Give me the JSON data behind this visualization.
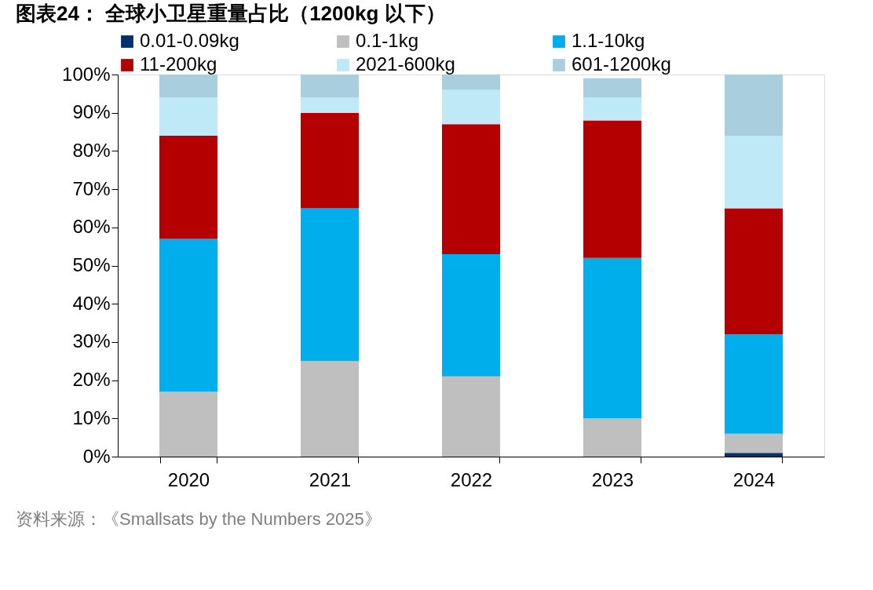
{
  "chart_data": {
    "type": "bar",
    "stacked": true,
    "title": "图表24： 全球小卫星重量占比（1200kg 以下）",
    "categories": [
      "2020",
      "2021",
      "2022",
      "2023",
      "2024"
    ],
    "series": [
      {
        "name": "0.01-0.09kg",
        "color": "#003070",
        "values": [
          0,
          0,
          0,
          0,
          1
        ]
      },
      {
        "name": "0.1-1kg",
        "color": "#bfbfbf",
        "values": [
          17,
          25,
          21,
          10,
          5
        ]
      },
      {
        "name": "1.1-10kg",
        "color": "#00aeeb",
        "values": [
          40,
          40,
          32,
          42,
          26
        ]
      },
      {
        "name": "11-200kg",
        "color": "#b40000",
        "values": [
          27,
          25,
          34,
          36,
          33
        ]
      },
      {
        "name": "2021-600kg",
        "color": "#c0e9f8",
        "values": [
          10,
          4,
          9,
          6,
          19
        ]
      },
      {
        "name": "601-1200kg",
        "color": "#a9cfdf",
        "values": [
          6,
          6,
          4,
          5,
          16
        ]
      }
    ],
    "ylim": [
      0,
      100
    ],
    "yticks": [
      {
        "value": 0,
        "label": "0%"
      },
      {
        "value": 10,
        "label": "10%"
      },
      {
        "value": 20,
        "label": "20%"
      },
      {
        "value": 30,
        "label": "30%"
      },
      {
        "value": 40,
        "label": "40%"
      },
      {
        "value": 50,
        "label": "50%"
      },
      {
        "value": 60,
        "label": "60%"
      },
      {
        "value": 70,
        "label": "70%"
      },
      {
        "value": 80,
        "label": "80%"
      },
      {
        "value": 90,
        "label": "90%"
      },
      {
        "value": 100,
        "label": "100%"
      }
    ],
    "grid": false,
    "legend": "top",
    "annotations": [
      "资料来源：《Smallsats by the Numbers 2025》"
    ]
  }
}
